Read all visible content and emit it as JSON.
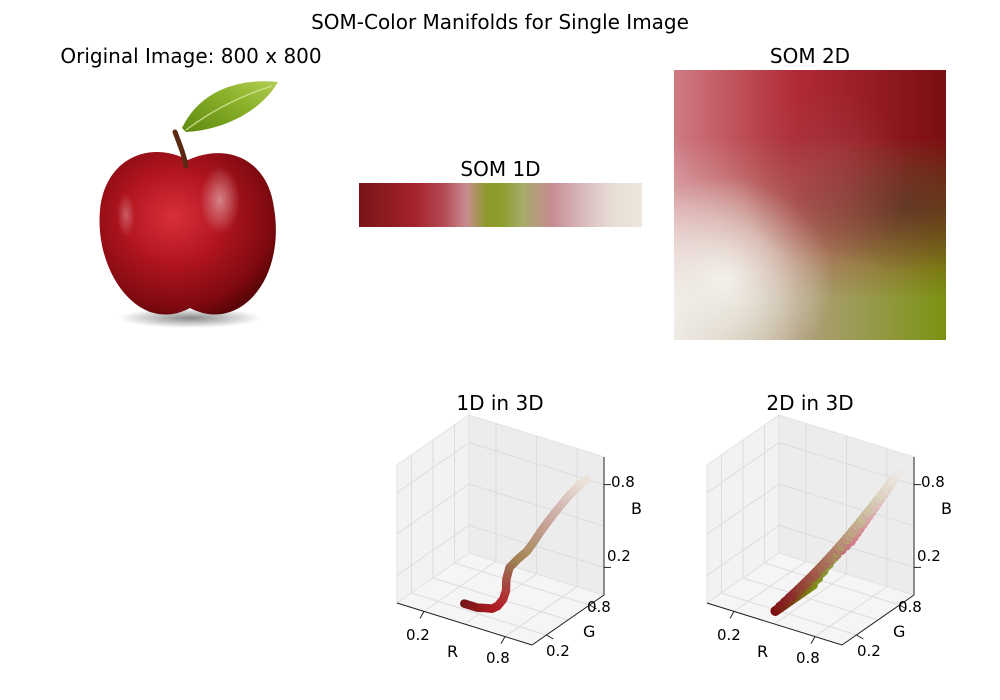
{
  "figure": {
    "title": "SOM-Color Manifolds for Single Image",
    "original_title": "Original Image: 800 x 800",
    "som1d_title": "SOM 1D",
    "som2d_title": "SOM 2D",
    "plot1_title": "1D in 3D",
    "plot2_title": "2D in 3D"
  },
  "colors": {
    "dark_red": "#7c1418",
    "red": "#a8202a",
    "pink": "#c97d84",
    "olive": "#8c9a2a",
    "green": "#7a9211",
    "cream": "#ece6dc",
    "grey_pink": "#9c6a70"
  },
  "chart_data": [
    {
      "type": "image",
      "title": "Original Image: 800 x 800",
      "image_width": 800,
      "image_height": 800,
      "content": "apple"
    },
    {
      "type": "heatmap",
      "title": "SOM 1D",
      "gradient_stops": [
        "#7a1418",
        "#8e1c22",
        "#a6232c",
        "#b34a55",
        "#c98c8f",
        "#8f9a2e",
        "#8e9c2a",
        "#a6ab6a",
        "#c78b92",
        "#d7b6b8",
        "#e8ded6",
        "#ece6dc"
      ]
    },
    {
      "type": "heatmap",
      "title": "SOM 2D",
      "corner_colors": {
        "top-left": "#cf7b84",
        "top-right": "#7a0e12",
        "bottom-left": "#ece8e2",
        "bottom-right": "#7a9211"
      }
    },
    {
      "type": "scatter",
      "title": "1D in 3D",
      "xlabel": "R",
      "ylabel": "G",
      "zlabel": "B",
      "xticks": [
        "0.2",
        "0.8"
      ],
      "yticks": [
        "0.2",
        "0.8"
      ],
      "zticks": [
        "0.2",
        "0.8"
      ],
      "xlim": [
        0,
        1
      ],
      "ylim": [
        0,
        1
      ],
      "zlim": [
        0,
        1
      ],
      "points": [
        [
          0.45,
          0.09,
          0.1
        ],
        [
          0.5,
          0.09,
          0.1
        ],
        [
          0.55,
          0.09,
          0.1
        ],
        [
          0.6,
          0.1,
          0.11
        ],
        [
          0.65,
          0.1,
          0.12
        ],
        [
          0.68,
          0.12,
          0.14
        ],
        [
          0.7,
          0.16,
          0.18
        ],
        [
          0.69,
          0.22,
          0.22
        ],
        [
          0.65,
          0.3,
          0.26
        ],
        [
          0.62,
          0.4,
          0.3
        ],
        [
          0.63,
          0.5,
          0.33
        ],
        [
          0.67,
          0.55,
          0.38
        ],
        [
          0.7,
          0.58,
          0.44
        ],
        [
          0.74,
          0.6,
          0.52
        ],
        [
          0.78,
          0.64,
          0.6
        ],
        [
          0.82,
          0.7,
          0.68
        ],
        [
          0.86,
          0.78,
          0.76
        ],
        [
          0.9,
          0.85,
          0.82
        ],
        [
          0.93,
          0.9,
          0.86
        ]
      ]
    },
    {
      "type": "scatter",
      "title": "2D in 3D",
      "xlabel": "R",
      "ylabel": "G",
      "zlabel": "B",
      "xticks": [
        "0.2",
        "0.8"
      ],
      "yticks": [
        "0.2",
        "0.8"
      ],
      "zticks": [
        "0.2",
        "0.8"
      ],
      "xlim": [
        0,
        1
      ],
      "ylim": [
        0,
        1
      ],
      "zlim": [
        0,
        1
      ],
      "surface_corners": {
        "top-left": [
          0.81,
          0.48,
          0.52
        ],
        "top-right": [
          0.48,
          0.05,
          0.07
        ],
        "bottom-left": [
          0.93,
          0.91,
          0.89
        ],
        "bottom-right": [
          0.48,
          0.57,
          0.07
        ]
      }
    }
  ]
}
